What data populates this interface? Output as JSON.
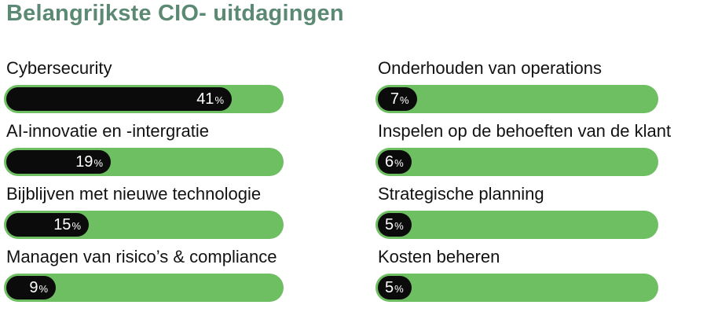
{
  "title": "Belangrijkste CIO- uitdagingen",
  "unit_symbol": "%",
  "colors": {
    "background": "#FFFFFF",
    "title": "#5C8973",
    "track_green": "#6EBE62",
    "fill_black": "#0B0B0B",
    "label_text": "#121212",
    "value_text": "#FFFFFF"
  },
  "chart_data": {
    "type": "bar",
    "orientation": "horizontal",
    "title": "Belangrijkste CIO- uitdagingen",
    "unit": "%",
    "scale_max": 50,
    "grid": "off",
    "legend": "none",
    "columns": [
      {
        "items": [
          {
            "label": "Cybersecurity",
            "value": 41
          },
          {
            "label": "AI-innovatie en -intergratie",
            "value": 19
          },
          {
            "label": "Bijblijven met nieuwe technologie",
            "value": 15
          },
          {
            "label": "Managen van risico’s & compliance",
            "value": 9
          }
        ]
      },
      {
        "items": [
          {
            "label": "Onderhouden van operations",
            "value": 7
          },
          {
            "label": "Inspelen op de behoeften van de klant",
            "value": 6
          },
          {
            "label": "Strategische planning",
            "value": 5
          },
          {
            "label": "Kosten beheren",
            "value": 5
          }
        ]
      }
    ]
  }
}
